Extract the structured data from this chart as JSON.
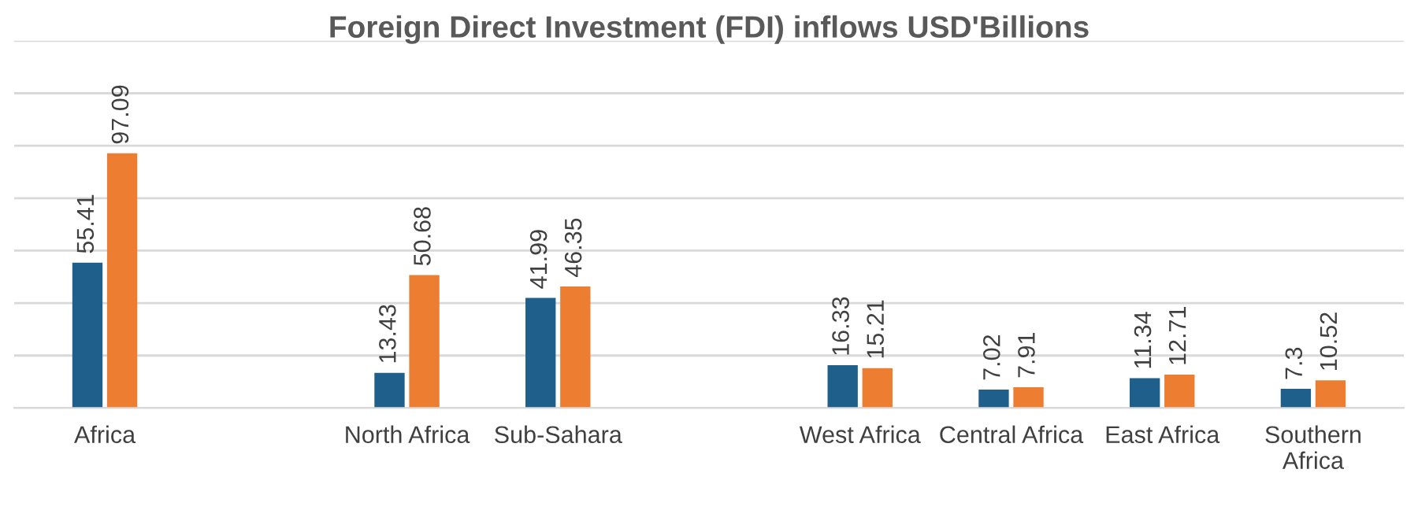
{
  "chart_data": {
    "type": "bar",
    "title": "Foreign Direct Investment (FDI) inflows USD'Billions",
    "categories": [
      "Africa",
      null,
      "North Africa",
      "Sub-Sahara",
      null,
      "West Africa",
      "Central Africa",
      "East Africa",
      "Southern Africa"
    ],
    "series": [
      {
        "color": "#1f5f8b",
        "values": [
          55.41,
          null,
          13.43,
          41.99,
          null,
          16.33,
          7.02,
          11.34,
          7.3
        ]
      },
      {
        "color": "#ed7d31",
        "values": [
          97.09,
          null,
          50.68,
          46.35,
          null,
          15.21,
          7.91,
          12.71,
          10.52
        ]
      }
    ],
    "ylim": [
      0,
      140
    ],
    "yticks": [
      {
        "value": 0,
        "label": null
      },
      {
        "value": 20,
        "label": null
      },
      {
        "value": 40,
        "label": null
      },
      {
        "value": 60,
        "label": null
      },
      {
        "value": 80,
        "label": null
      },
      {
        "value": 100,
        "label": null
      },
      {
        "value": 120,
        "label": null
      },
      {
        "value": 140,
        "label": null
      }
    ],
    "grid": "y",
    "data_labels": true,
    "tick_labels": "x"
  }
}
